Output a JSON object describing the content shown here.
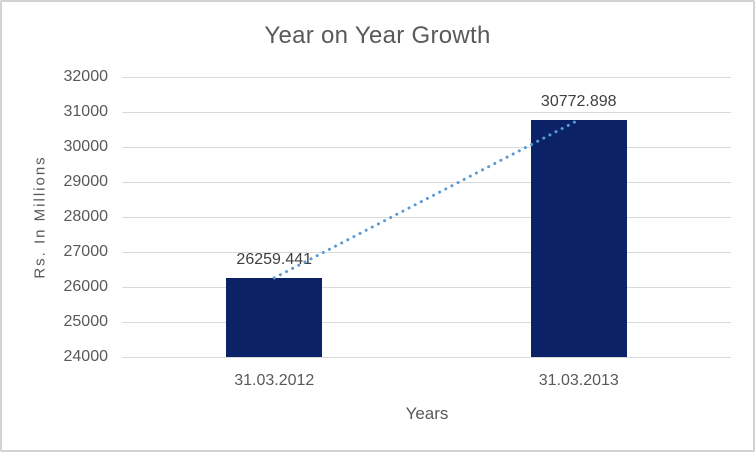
{
  "chart_data": {
    "type": "bar",
    "title": "Year on Year Growth",
    "xlabel": "Years",
    "ylabel": "Rs. In Millions",
    "categories": [
      "31.03.2012",
      "31.03.2013"
    ],
    "values": [
      26259.441,
      30772.898
    ],
    "data_labels": [
      "26259.441",
      "30772.898"
    ],
    "ylim": [
      24000,
      32000
    ],
    "ytick_step": 1000,
    "grid": "horizontal-only",
    "legend": "none",
    "trendline": {
      "style": "dotted",
      "from_value": 26259.441,
      "to_value": 30772.898
    },
    "colors": {
      "bar": "#0b2366",
      "trendline": "#5b9bd5",
      "gridline": "#d9d9d9",
      "text": "#595959",
      "data_label": "#3f3f3f",
      "frame_border": "#d2d2d2",
      "background": "#ffffff"
    }
  }
}
